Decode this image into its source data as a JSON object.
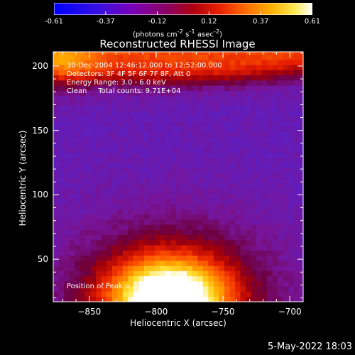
{
  "colorbar": {
    "ticks": [
      "-0.61",
      "-0.37",
      "-0.12",
      "0.12",
      "0.37",
      "0.61"
    ],
    "units_html": "(photons cm<sup>-2</sup> s<sup>-1</sup> asec<sup>-2</sup>)"
  },
  "annotations": {
    "time_range": "30-Dec-2004 12:46:12.000 to 12:52:00.000",
    "detectors": "Detectors: 3F 4F 5F 6F 7F 8F, Att 0",
    "energy": "Energy Range: 3.0 - 6.0 keV",
    "clean": "Clean     Total counts: 9.71E+04",
    "peak": "Position of Peak = [-790,19]"
  },
  "footer": {
    "date": "5-May-2022 18:03"
  },
  "chart_data": {
    "type": "heatmap",
    "title": "Reconstructed RHESSI Image",
    "xlabel": "Heliocentric X (arcsec)",
    "ylabel": "Heliocentric Y (arcsec)",
    "xlim": [
      -877,
      -690
    ],
    "ylim": [
      17,
      211
    ],
    "xticks": [
      -850,
      -800,
      -750,
      -700
    ],
    "yticks": [
      50,
      100,
      150,
      200
    ],
    "colorbar_range": [
      -0.61,
      0.61
    ],
    "colormap": "rhessi blue-violet-red-yellow-white",
    "peak_position": [
      -790,
      19
    ],
    "peak_value": 0.61
  }
}
